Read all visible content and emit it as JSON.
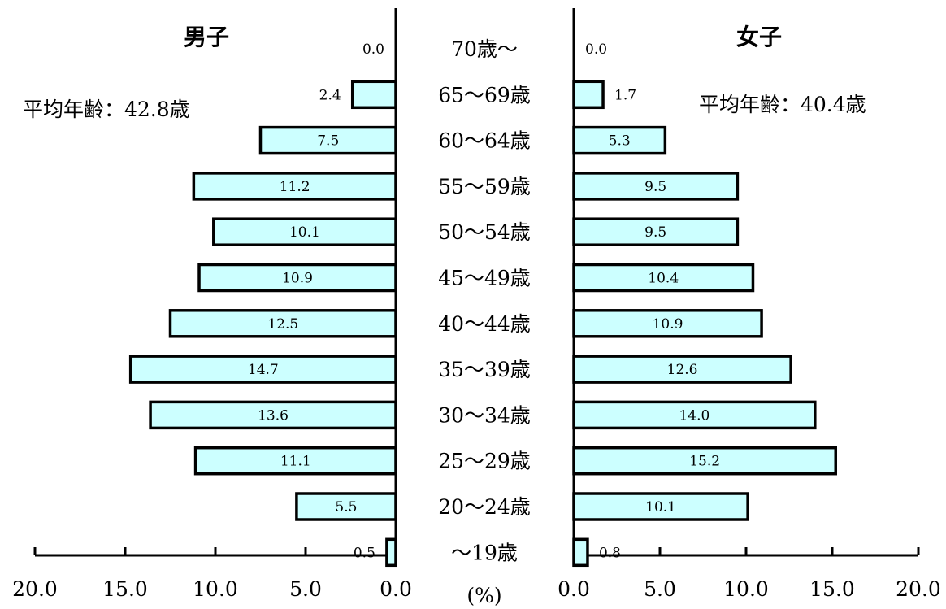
{
  "chart_data": {
    "type": "bar",
    "orientation": "horizontal-population-pyramid",
    "unit": "(%)",
    "categories": [
      "70歳～",
      "65～69歳",
      "60～64歳",
      "55～59歳",
      "50～54歳",
      "45～49歳",
      "40～44歳",
      "35～39歳",
      "30～34歳",
      "25～29歳",
      "20～24歳",
      "～19歳"
    ],
    "series": [
      {
        "name": "男子",
        "values": [
          0.0,
          2.4,
          7.5,
          11.2,
          10.1,
          10.9,
          12.5,
          14.7,
          13.6,
          11.1,
          5.5,
          0.5
        ],
        "value_labels": [
          "0.0",
          "2.4",
          "7.5",
          "11.2",
          "10.1",
          "10.9",
          "12.5",
          "14.7",
          "13.6",
          "11.1",
          "5.5",
          "0.5"
        ],
        "average_label": "平均年齢：42.8歳"
      },
      {
        "name": "女子",
        "values": [
          0.0,
          1.7,
          5.3,
          9.5,
          9.5,
          10.4,
          10.9,
          12.6,
          14.0,
          15.2,
          10.1,
          0.8
        ],
        "value_labels": [
          "0.0",
          "1.7",
          "5.3",
          "9.5",
          "9.5",
          "10.4",
          "10.9",
          "12.6",
          "14.0",
          "15.2",
          "10.1",
          "0.8"
        ],
        "average_label": "平均年齢：40.4歳"
      }
    ],
    "xlim": [
      0,
      20
    ],
    "ticks": [
      0,
      5,
      10,
      15,
      20
    ],
    "left_tick_labels": [
      "20.0",
      "15.0",
      "10.0",
      "5.0",
      "0.0"
    ],
    "right_tick_labels": [
      "0.0",
      "5.0",
      "10.0",
      "15.0",
      "20.0"
    ],
    "bar_fill": "#ccffff",
    "bar_stroke": "#000000",
    "grid": false
  }
}
